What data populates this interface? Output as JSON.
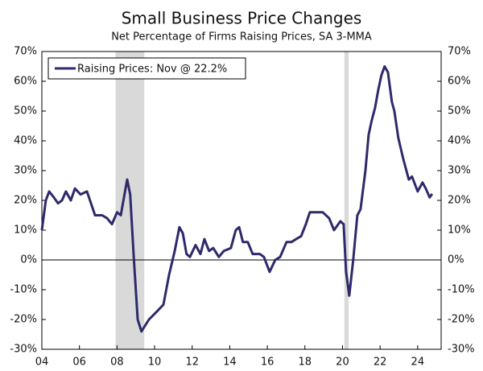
{
  "chart_data": {
    "type": "line",
    "title": "Small Business Price Changes",
    "subtitle": "Net Percentage of Firms Raising Prices, SA 3-MMA",
    "x": [
      2004,
      2004.21,
      2004.39,
      2004.64,
      2004.86,
      2005.07,
      2005.28,
      2005.54,
      2005.76,
      2006.06,
      2006.4,
      2006.83,
      2007.21,
      2007.47,
      2007.73,
      2008.0,
      2008.2,
      2008.54,
      2008.7,
      2008.9,
      2009.1,
      2009.3,
      2009.7,
      2010.17,
      2010.47,
      2010.77,
      2011.07,
      2011.32,
      2011.5,
      2011.7,
      2011.88,
      2012.18,
      2012.44,
      2012.65,
      2012.9,
      2013.12,
      2013.42,
      2013.68,
      2014.06,
      2014.32,
      2014.5,
      2014.7,
      2014.96,
      2015.22,
      2015.6,
      2015.82,
      2016.12,
      2016.42,
      2016.68,
      2017.02,
      2017.28,
      2017.53,
      2017.8,
      2018.05,
      2018.26,
      2018.6,
      2018.95,
      2019.29,
      2019.55,
      2019.89,
      2020.06,
      2020.19,
      2020.36,
      2020.57,
      2020.79,
      2020.96,
      2021.22,
      2021.39,
      2021.56,
      2021.73,
      2021.9,
      2022.07,
      2022.24,
      2022.42,
      2022.63,
      2022.76,
      2022.97,
      2023.23,
      2023.53,
      2023.7,
      2024.0,
      2024.26,
      2024.43,
      2024.64,
      2024.77
    ],
    "series": [
      {
        "name": "Raising Prices: Nov @ 22.2%",
        "color": "#2e2a6b",
        "values": [
          10,
          20,
          23,
          21,
          19,
          20,
          23,
          20,
          24,
          22,
          23,
          15,
          15,
          14,
          12,
          16,
          15,
          27,
          22,
          0,
          -20,
          -24,
          -20,
          -17,
          -15,
          -5,
          3,
          11,
          9,
          2,
          1,
          5,
          2,
          7,
          3,
          4,
          1,
          3,
          4,
          10,
          11,
          6,
          6,
          2,
          2,
          1,
          -4,
          0,
          1,
          6,
          6,
          7,
          8,
          12,
          16,
          16,
          16,
          14,
          10,
          13,
          12,
          -4,
          -12,
          0,
          15,
          17,
          30,
          42,
          47,
          51,
          57,
          62,
          65,
          63,
          53,
          50,
          41,
          34,
          27,
          28,
          23,
          26,
          24,
          21,
          22.2
        ]
      }
    ],
    "xlim": [
      2004,
      2025.25
    ],
    "xticks": [
      {
        "value": 2004,
        "label": "04"
      },
      {
        "value": 2006,
        "label": "06"
      },
      {
        "value": 2008,
        "label": "08"
      },
      {
        "value": 2010,
        "label": "10"
      },
      {
        "value": 2012,
        "label": "12"
      },
      {
        "value": 2014,
        "label": "14"
      },
      {
        "value": 2016,
        "label": "16"
      },
      {
        "value": 2018,
        "label": "18"
      },
      {
        "value": 2020,
        "label": "20"
      },
      {
        "value": 2022,
        "label": "22"
      },
      {
        "value": 2024,
        "label": "24"
      }
    ],
    "ylim": [
      -30,
      70
    ],
    "yticks": [
      {
        "value": -30,
        "label": "-30%"
      },
      {
        "value": -20,
        "label": "-20%"
      },
      {
        "value": -10,
        "label": "-10%"
      },
      {
        "value": 0,
        "label": "0%"
      },
      {
        "value": 10,
        "label": "10%"
      },
      {
        "value": 20,
        "label": "20%"
      },
      {
        "value": 30,
        "label": "30%"
      },
      {
        "value": 40,
        "label": "40%"
      },
      {
        "value": 50,
        "label": "50%"
      },
      {
        "value": 60,
        "label": "60%"
      },
      {
        "value": 70,
        "label": "70%"
      }
    ],
    "y2lim": [
      -30,
      70
    ],
    "y2ticks": [
      {
        "value": -30,
        "label": "-30%"
      },
      {
        "value": -20,
        "label": "-20%"
      },
      {
        "value": -10,
        "label": "-10%"
      },
      {
        "value": 0,
        "label": "0%"
      },
      {
        "value": 10,
        "label": "10%"
      },
      {
        "value": 20,
        "label": "20%"
      },
      {
        "value": 30,
        "label": "30%"
      },
      {
        "value": 40,
        "label": "40%"
      },
      {
        "value": 50,
        "label": "50%"
      },
      {
        "value": 60,
        "label": "60%"
      },
      {
        "value": 70,
        "label": "70%"
      }
    ],
    "shaded_periods": [
      [
        2007.92,
        2009.45
      ],
      [
        2020.1,
        2020.33
      ]
    ],
    "shade_color": "#d9d9d9",
    "legend": "top-left"
  }
}
